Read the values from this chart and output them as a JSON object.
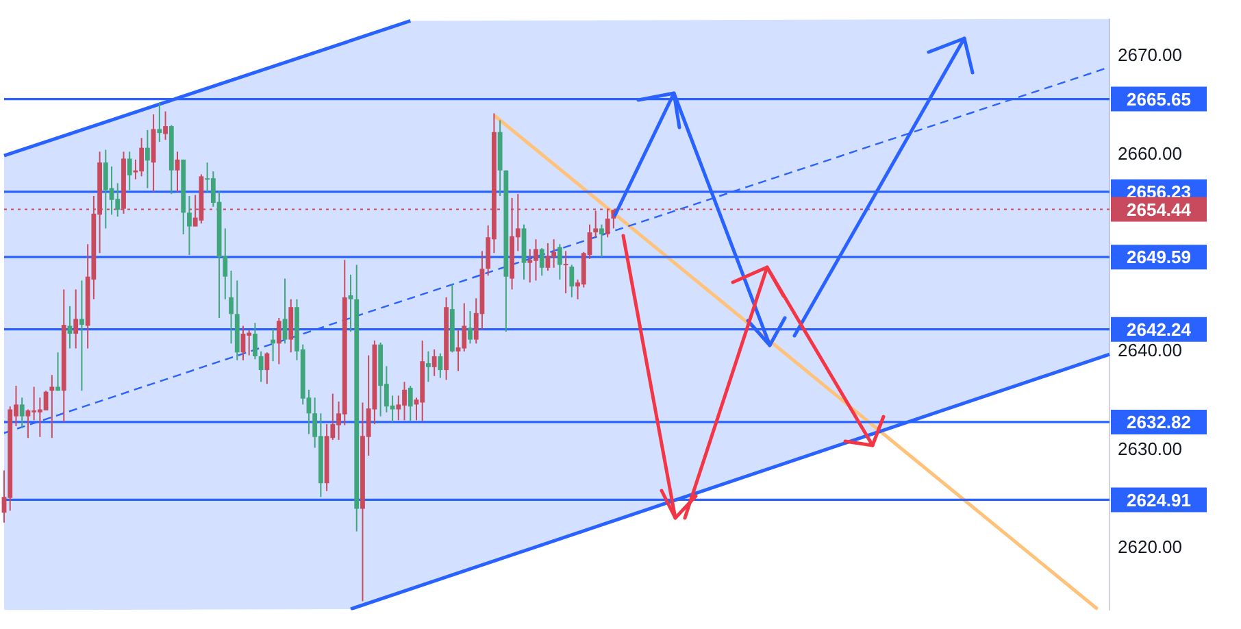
{
  "chart_data": {
    "type": "candlestick",
    "categories": [
      null,
      null,
      null,
      null,
      null,
      null,
      null,
      null,
      null,
      null,
      null,
      null,
      null,
      null,
      null,
      null,
      null,
      null,
      null,
      null,
      null,
      null,
      null,
      null,
      null,
      null,
      null,
      null,
      null,
      null,
      null,
      null,
      null,
      null,
      null,
      null,
      null,
      null,
      null,
      null,
      null,
      null,
      null,
      null,
      null,
      null,
      null,
      null,
      null,
      null,
      null,
      null,
      null,
      null,
      null,
      null,
      null,
      null,
      null,
      null,
      null,
      null,
      null,
      null,
      null,
      null,
      null,
      null,
      null,
      null,
      null,
      null,
      null,
      null,
      null,
      null,
      null,
      null,
      null,
      null,
      null,
      null,
      null,
      null,
      null,
      null,
      null,
      null,
      null,
      null,
      null,
      null,
      null,
      null,
      null,
      null,
      null,
      null,
      null,
      null,
      null,
      null,
      null,
      null,
      null,
      null,
      null,
      null,
      null,
      null,
      null,
      null,
      null,
      null,
      null,
      null,
      null,
      null,
      null,
      null,
      null,
      null,
      null,
      null,
      null,
      null,
      null,
      null,
      null,
      null,
      null,
      null,
      null,
      null,
      null,
      null,
      null,
      null,
      null,
      null,
      null,
      null,
      null,
      null,
      null,
      null,
      null,
      null,
      null,
      null,
      null,
      null,
      null,
      null,
      null,
      null,
      null,
      null,
      null,
      null,
      null,
      null,
      null,
      null,
      null,
      null,
      null,
      null,
      null,
      null,
      null,
      null,
      null,
      null,
      null,
      null,
      null,
      null,
      null,
      null,
      null,
      null,
      null,
      null,
      null,
      null
    ],
    "ohlc": [
      [
        2623.6,
        2627.9,
        2622.6,
        2625.2
      ],
      [
        2625.1,
        2634.4,
        2623.8,
        2634.1
      ],
      [
        2633.4,
        2636.5,
        2632.4,
        2634.6
      ],
      [
        2634.6,
        2635.3,
        2632.2,
        2633.4
      ],
      [
        2633.4,
        2634.1,
        2631.2,
        2634.0
      ],
      [
        2633.8,
        2636.4,
        2633.0,
        2634.0
      ],
      [
        2633.8,
        2635.3,
        2631.3,
        2634.1
      ],
      [
        2634.0,
        2636.0,
        2634.0,
        2635.9
      ],
      [
        2636.0,
        2637.6,
        2631.2,
        2636.4
      ],
      [
        2636.4,
        2639.9,
        2636.0,
        2636.0
      ],
      [
        2636.0,
        2646.3,
        2632.8,
        2642.7
      ],
      [
        2642.6,
        2644.6,
        2640.3,
        2641.8
      ],
      [
        2641.8,
        2646.3,
        2640.3,
        2643.3
      ],
      [
        2643.3,
        2647.2,
        2636.0,
        2642.7
      ],
      [
        2642.6,
        2650.9,
        2640.3,
        2647.6
      ],
      [
        2647.3,
        2655.8,
        2645.3,
        2654.0
      ],
      [
        2653.9,
        2660.3,
        2650.0,
        2659.2
      ],
      [
        2659.2,
        2660.5,
        2652.5,
        2656.4
      ],
      [
        2656.6,
        2658.8,
        2653.9,
        2655.4
      ],
      [
        2655.5,
        2657.1,
        2653.7,
        2654.4
      ],
      [
        2654.5,
        2660.3,
        2654.0,
        2659.6
      ],
      [
        2659.6,
        2660.3,
        2656.4,
        2657.9
      ],
      [
        2658.2,
        2659.5,
        2657.5,
        2658.4
      ],
      [
        2658.3,
        2661.7,
        2657.8,
        2660.7
      ],
      [
        2660.7,
        2662.5,
        2656.6,
        2659.4
      ],
      [
        2659.2,
        2664.1,
        2656.2,
        2662.6
      ],
      [
        2662.6,
        2665.3,
        2661.3,
        2662.2
      ],
      [
        2662.1,
        2664.4,
        2661.5,
        2662.9
      ],
      [
        2662.9,
        2663.0,
        2656.0,
        2658.4
      ],
      [
        2658.4,
        2660.3,
        2656.2,
        2659.5
      ],
      [
        2659.5,
        2659.5,
        2651.9,
        2654.1
      ],
      [
        2654.1,
        2655.8,
        2649.8,
        2652.7
      ],
      [
        2652.7,
        2655.9,
        2652.7,
        2653.6
      ],
      [
        2653.3,
        2658.0,
        2653.0,
        2657.8
      ],
      [
        2657.6,
        2659.2,
        2656.2,
        2657.5
      ],
      [
        2657.6,
        2658.3,
        2654.7,
        2655.1
      ],
      [
        2655.2,
        2656.3,
        2643.4,
        2649.6
      ],
      [
        2649.7,
        2652.5,
        2645.3,
        2647.6
      ],
      [
        2645.5,
        2648.2,
        2640.8,
        2643.8
      ],
      [
        2643.8,
        2647.2,
        2639.1,
        2639.9
      ],
      [
        2639.9,
        2642.6,
        2639.1,
        2641.8
      ],
      [
        2641.6,
        2642.2,
        2639.6,
        2641.9
      ],
      [
        2641.8,
        2642.9,
        2639.2,
        2639.5
      ],
      [
        2639.5,
        2640.0,
        2636.9,
        2638.1
      ],
      [
        2638.1,
        2639.9,
        2636.7,
        2639.8
      ],
      [
        2641.2,
        2642.3,
        2639.0,
        2640.8
      ],
      [
        2640.8,
        2643.4,
        2638.7,
        2643.1
      ],
      [
        2643.3,
        2647.4,
        2640.8,
        2641.2
      ],
      [
        2641.2,
        2645.3,
        2639.9,
        2644.5
      ],
      [
        2644.5,
        2645.3,
        2639.1,
        2640.0
      ],
      [
        2640.2,
        2640.7,
        2634.6,
        2635.2
      ],
      [
        2635.3,
        2636.1,
        2631.6,
        2633.7
      ],
      [
        2633.7,
        2635.3,
        2630.2,
        2631.3
      ],
      [
        2631.4,
        2633.7,
        2625.2,
        2626.6
      ],
      [
        2626.6,
        2632.6,
        2625.8,
        2631.4
      ],
      [
        2631.2,
        2635.7,
        2631.0,
        2632.6
      ],
      [
        2632.5,
        2634.9,
        2631.0,
        2633.7
      ],
      [
        2633.6,
        2649.3,
        2632.5,
        2645.5
      ],
      [
        2645.7,
        2647.8,
        2642.0,
        2645.3
      ],
      [
        2645.3,
        2648.8,
        2621.7,
        2624.0
      ],
      [
        2624.0,
        2634.8,
        2614.6,
        2631.4
      ],
      [
        2631.3,
        2639.6,
        2629.4,
        2634.2
      ],
      [
        2634.1,
        2641.1,
        2632.6,
        2640.7
      ],
      [
        2640.7,
        2640.9,
        2633.4,
        2636.5
      ],
      [
        2636.7,
        2638.5,
        2633.8,
        2634.4
      ],
      [
        2634.5,
        2635.5,
        2632.8,
        2634.1
      ],
      [
        2634.1,
        2635.5,
        2633.0,
        2634.6
      ],
      [
        2634.5,
        2636.9,
        2633.0,
        2636.1
      ],
      [
        2636.3,
        2636.5,
        2632.9,
        2634.4
      ],
      [
        2634.6,
        2635.3,
        2633.0,
        2635.1
      ],
      [
        2634.8,
        2641.1,
        2632.9,
        2639.0
      ],
      [
        2638.8,
        2640.0,
        2636.9,
        2638.4
      ],
      [
        2638.4,
        2640.2,
        2637.5,
        2639.5
      ],
      [
        2639.5,
        2639.8,
        2637.3,
        2638.1
      ],
      [
        2638.1,
        2645.5,
        2637.1,
        2644.5
      ],
      [
        2644.3,
        2646.8,
        2639.9,
        2640.0
      ],
      [
        2640.0,
        2642.2,
        2638.0,
        2640.4
      ],
      [
        2640.3,
        2644.9,
        2640.0,
        2642.6
      ],
      [
        2642.4,
        2644.1,
        2640.8,
        2641.2
      ],
      [
        2641.2,
        2645.4,
        2640.8,
        2643.9
      ],
      [
        2643.8,
        2650.2,
        2642.2,
        2648.4
      ],
      [
        2648.4,
        2652.8,
        2647.7,
        2651.6
      ],
      [
        2651.4,
        2664.2,
        2650.0,
        2662.3
      ],
      [
        2662.3,
        2663.5,
        2655.8,
        2658.4
      ],
      [
        2658.4,
        2658.4,
        2642.0,
        2647.6
      ],
      [
        2647.4,
        2655.6,
        2646.3,
        2651.7
      ],
      [
        2651.6,
        2656.0,
        2650.2,
        2652.5
      ],
      [
        2652.5,
        2652.9,
        2647.3,
        2649.0
      ],
      [
        2649.0,
        2650.4,
        2647.0,
        2649.3
      ],
      [
        2649.2,
        2651.4,
        2647.2,
        2650.4
      ],
      [
        2650.4,
        2650.5,
        2647.7,
        2648.5
      ],
      [
        2648.5,
        2651.0,
        2648.2,
        2649.7
      ],
      [
        2649.6,
        2651.4,
        2648.5,
        2650.1
      ],
      [
        2650.6,
        2650.9,
        2647.3,
        2648.8
      ],
      [
        2648.8,
        2650.2,
        2645.9,
        2648.9
      ],
      [
        2648.6,
        2648.8,
        2645.5,
        2646.6
      ],
      [
        2646.6,
        2647.3,
        2645.3,
        2647.0
      ],
      [
        2646.8,
        2650.1,
        2646.5,
        2650.0
      ],
      [
        2649.8,
        2652.9,
        2649.4,
        2652.1
      ],
      [
        2652.1,
        2654.3,
        2651.6,
        2652.5
      ],
      [
        2652.5,
        2652.9,
        2649.6,
        2651.9
      ],
      [
        2651.9,
        2654.4,
        2651.6,
        2653.5
      ],
      [
        2653.5,
        2654.4,
        2652.5,
        2654.4
      ],
      null,
      null,
      null,
      null,
      null,
      null,
      null,
      null,
      null,
      null,
      null,
      null,
      null,
      null,
      null,
      null,
      null,
      null,
      null,
      null,
      null,
      null,
      null,
      null,
      null,
      null,
      null,
      null,
      null,
      null,
      null,
      null,
      null,
      null,
      null,
      null,
      null,
      null,
      null,
      null,
      null,
      null,
      null,
      null,
      null,
      null,
      null,
      null,
      null,
      null,
      null,
      null,
      null,
      null,
      null,
      null,
      null,
      null,
      null,
      null,
      null,
      null,
      null,
      null,
      null,
      null,
      null,
      null,
      null,
      null,
      null,
      null,
      null,
      null,
      null,
      null,
      null,
      null,
      null,
      null,
      null,
      null,
      null
    ],
    "colors": [
      "#c84a5c",
      "#c84a5c",
      "#c84a5c",
      "#3fa57a",
      "#c84a5c",
      "#c84a5c",
      "#c84a5c",
      "#c84a5c",
      "#c84a5c",
      "#3fa57a",
      "#c84a5c",
      "#3fa57a",
      "#c84a5c",
      "#3fa57a",
      "#c84a5c",
      "#c84a5c",
      "#c84a5c",
      "#3fa57a",
      "#3fa57a",
      "#3fa57a",
      "#c84a5c",
      "#3fa57a",
      "#c84a5c",
      "#c84a5c",
      "#3fa57a",
      "#c84a5c",
      "#3fa57a",
      "#c84a5c",
      "#3fa57a",
      "#c84a5c",
      "#3fa57a",
      "#3fa57a",
      "#c84a5c",
      "#c84a5c",
      "#3fa57a",
      "#3fa57a",
      "#3fa57a",
      "#3fa57a",
      "#3fa57a",
      "#3fa57a",
      "#c84a5c",
      "#c84a5c",
      "#3fa57a",
      "#3fa57a",
      "#c84a5c",
      "#3fa57a",
      "#c84a5c",
      "#3fa57a",
      "#c84a5c",
      "#3fa57a",
      "#3fa57a",
      "#3fa57a",
      "#3fa57a",
      "#3fa57a",
      "#c84a5c",
      "#c84a5c",
      "#c84a5c",
      "#c84a5c",
      "#3fa57a",
      "#3fa57a",
      "#c84a5c",
      "#c84a5c",
      "#c84a5c",
      "#3fa57a",
      "#3fa57a",
      "#3fa57a",
      "#c84a5c",
      "#c84a5c",
      "#3fa57a",
      "#c84a5c",
      "#c84a5c",
      "#3fa57a",
      "#c84a5c",
      "#3fa57a",
      "#c84a5c",
      "#3fa57a",
      "#c84a5c",
      "#c84a5c",
      "#3fa57a",
      "#c84a5c",
      "#c84a5c",
      "#c84a5c",
      "#c84a5c",
      "#3fa57a",
      "#3fa57a",
      "#c84a5c",
      "#c84a5c",
      "#3fa57a",
      "#c84a5c",
      "#c84a5c",
      "#3fa57a",
      "#c84a5c",
      "#c84a5c",
      "#3fa57a",
      "#c84a5c",
      "#3fa57a",
      "#c84a5c",
      "#c84a5c",
      "#c84a5c",
      "#c84a5c",
      "#3fa57a",
      "#c84a5c",
      "#c84a5c",
      null,
      null,
      null,
      null,
      null,
      null,
      null,
      null,
      null,
      null,
      null,
      null,
      null,
      null,
      null,
      null,
      null,
      null,
      null,
      null,
      null,
      null,
      null,
      null,
      null,
      null,
      null,
      null,
      null,
      null,
      null,
      null,
      null,
      null,
      null,
      null,
      null,
      null,
      null,
      null,
      null,
      null,
      null,
      null,
      null,
      null,
      null,
      null,
      null,
      null,
      null,
      null,
      null,
      null,
      null,
      null,
      null,
      null,
      null,
      null,
      null,
      null,
      null,
      null,
      null,
      null,
      null,
      null,
      null,
      null,
      null,
      null,
      null,
      null,
      null,
      null,
      null,
      null,
      null,
      null,
      null,
      null,
      null
    ],
    "series": [
      {
        "type": "line",
        "color": "#2962ff",
        "line_style": "solid",
        "values": [
          2659.9,
          null,
          null,
          null,
          null,
          null,
          null,
          null,
          null,
          null,
          null,
          null,
          null,
          null,
          null,
          null,
          null,
          null,
          null,
          null,
          null,
          null,
          null,
          null,
          null,
          null,
          null,
          null,
          null,
          null,
          null,
          null,
          null,
          null,
          null,
          null,
          null,
          null,
          null,
          null,
          null,
          null,
          null,
          null,
          null,
          null,
          null,
          null,
          null,
          null,
          null,
          null,
          null,
          null,
          null,
          null,
          null,
          null,
          null,
          null,
          null,
          null,
          null,
          null,
          null,
          null,
          null,
          null,
          2673.6,
          null,
          null,
          null,
          null,
          null,
          null,
          null,
          null,
          null,
          null,
          null,
          null,
          null,
          null,
          null,
          null,
          null,
          null,
          null,
          null,
          null,
          null,
          null,
          null,
          null,
          null,
          null,
          null,
          null,
          null,
          null,
          null,
          null,
          null,
          null,
          null,
          null,
          null,
          null,
          null,
          null,
          null,
          null,
          null,
          null,
          null,
          null,
          null,
          null,
          null,
          null,
          null,
          null,
          null,
          null,
          null,
          null,
          null,
          null,
          null,
          null,
          null,
          null,
          null,
          null,
          null,
          null,
          null,
          null,
          null,
          null,
          null,
          null,
          null,
          null,
          null,
          null,
          null,
          null,
          null,
          null,
          null,
          null,
          null,
          null,
          null,
          null,
          null,
          null,
          null,
          null,
          null,
          null,
          null,
          null,
          null,
          null,
          null,
          null,
          null,
          null,
          null,
          null,
          null,
          null,
          null,
          null,
          null,
          null,
          null,
          null,
          null,
          null,
          null,
          null,
          null,
          null
        ]
      },
      {
        "type": "line",
        "color": "#2962ff",
        "line_style": "solid",
        "values": [
          null,
          null,
          null,
          null,
          null,
          null,
          null,
          null,
          null,
          null,
          null,
          null,
          null,
          null,
          null,
          null,
          null,
          null,
          null,
          null,
          null,
          null,
          null,
          null,
          null,
          null,
          null,
          null,
          null,
          null,
          null,
          null,
          null,
          null,
          null,
          null,
          null,
          null,
          null,
          null,
          null,
          null,
          null,
          null,
          null,
          null,
          null,
          null,
          null,
          null,
          null,
          null,
          null,
          null,
          null,
          null,
          null,
          null,
          2613.8,
          null,
          null,
          null,
          null,
          null,
          null,
          null,
          null,
          null,
          null,
          null,
          null,
          null,
          null,
          null,
          null,
          null,
          null,
          null,
          null,
          null,
          null,
          null,
          null,
          null,
          null,
          null,
          null,
          null,
          null,
          null,
          null,
          null,
          null,
          null,
          null,
          null,
          null,
          null,
          null,
          null,
          null,
          null,
          null,
          null,
          null,
          null,
          null,
          null,
          null,
          null,
          null,
          null,
          null,
          null,
          null,
          null,
          null,
          null,
          null,
          null,
          null,
          null,
          null,
          null,
          null,
          null,
          null,
          null,
          null,
          null,
          null,
          null,
          null,
          null,
          null,
          null,
          null,
          null,
          null,
          null,
          null,
          null,
          null,
          null,
          null,
          null,
          null,
          null,
          null,
          null,
          null,
          null,
          null,
          null,
          null,
          null,
          null,
          null,
          null,
          null,
          null,
          null,
          null,
          null,
          null,
          null,
          null,
          null,
          null,
          null,
          null,
          null,
          null,
          null,
          null,
          null,
          null,
          null,
          null,
          null,
          null,
          null,
          null,
          null,
          null,
          2639.7
        ]
      },
      {
        "type": "line",
        "color": "#2962ff",
        "line_style": "dashed",
        "values": [
          2631.7,
          null,
          null,
          null,
          null,
          null,
          null,
          null,
          null,
          null,
          null,
          null,
          null,
          null,
          null,
          null,
          null,
          null,
          null,
          null,
          null,
          null,
          null,
          null,
          null,
          null,
          null,
          null,
          null,
          null,
          null,
          null,
          null,
          null,
          null,
          null,
          null,
          null,
          null,
          null,
          null,
          null,
          null,
          null,
          null,
          null,
          null,
          null,
          null,
          null,
          null,
          null,
          null,
          null,
          null,
          null,
          null,
          null,
          2643.4,
          null,
          null,
          null,
          null,
          null,
          null,
          null,
          null,
          null,
          2645.4,
          null,
          null,
          null,
          null,
          null,
          null,
          null,
          null,
          null,
          null,
          null,
          null,
          null,
          null,
          null,
          null,
          null,
          null,
          null,
          null,
          null,
          null,
          null,
          null,
          null,
          null,
          null,
          null,
          null,
          null,
          null,
          null,
          null,
          null,
          null,
          null,
          null,
          null,
          null,
          null,
          null,
          null,
          null,
          null,
          null,
          null,
          null,
          null,
          null,
          null,
          null,
          null,
          null,
          null,
          null,
          null,
          null,
          null,
          null,
          null,
          null,
          null,
          null,
          null,
          null,
          null,
          null,
          null,
          null,
          null,
          null,
          null,
          null,
          null,
          null,
          null,
          null,
          null,
          null,
          null,
          null,
          null,
          null,
          null,
          null,
          null,
          null,
          null,
          null,
          null,
          null,
          null,
          null,
          null,
          null,
          null,
          null,
          null,
          null,
          null,
          null,
          null,
          null,
          null,
          null,
          null,
          null,
          null,
          null,
          null,
          null,
          null,
          null,
          null,
          null,
          null,
          2668.9
        ],
        "lower": [
          2613.7,
          null,
          null,
          null,
          null,
          null,
          null,
          null,
          null,
          null,
          null,
          null,
          null,
          null,
          null,
          null,
          null,
          null,
          null,
          null,
          null,
          null,
          null,
          null,
          null,
          null,
          null,
          null,
          null,
          null,
          null,
          null,
          null,
          null,
          null,
          null,
          null,
          null,
          null,
          null,
          null,
          null,
          null,
          null,
          null,
          null,
          null,
          null,
          null,
          null,
          null,
          null,
          null,
          null,
          null,
          null,
          null,
          null,
          2613.8,
          null,
          null,
          null,
          null,
          null,
          null,
          null,
          null,
          null,
          2615.8,
          null,
          null,
          null,
          null,
          null,
          null,
          null,
          null,
          null,
          null,
          null,
          null,
          null,
          null,
          null,
          null,
          null,
          null,
          null,
          null,
          null,
          null,
          null,
          null,
          null,
          null,
          null,
          null,
          null,
          null,
          null,
          null,
          null,
          null,
          null,
          null,
          null,
          null,
          null,
          null,
          null,
          null,
          null,
          null,
          null,
          null,
          null,
          null,
          null,
          null,
          null,
          null,
          null,
          null,
          null,
          null,
          null,
          null,
          null,
          null,
          null,
          null,
          null,
          null,
          null,
          null,
          null,
          null,
          null,
          null,
          null,
          null,
          null,
          null,
          null,
          null,
          null,
          null,
          null,
          null,
          null,
          null,
          null,
          null,
          null,
          null,
          null,
          null,
          null,
          null,
          null,
          null,
          null,
          null,
          null,
          null,
          null,
          null,
          null,
          null,
          null,
          null,
          null,
          null,
          null,
          null,
          null,
          null,
          null,
          null,
          null,
          null,
          null,
          null,
          null,
          null,
          2639.7
        ],
        "upper": [
          2659.9,
          null,
          null,
          null,
          null,
          null,
          null,
          null,
          null,
          null,
          null,
          null,
          null,
          null,
          null,
          null,
          null,
          null,
          null,
          null,
          null,
          null,
          null,
          null,
          null,
          null,
          null,
          null,
          null,
          null,
          null,
          null,
          null,
          null,
          null,
          null,
          null,
          null,
          null,
          null,
          null,
          null,
          null,
          null,
          null,
          null,
          null,
          null,
          null,
          null,
          null,
          null,
          null,
          null,
          null,
          null,
          null,
          null,
          2671.6,
          null,
          null,
          null,
          null,
          null,
          null,
          null,
          null,
          null,
          2673.6,
          null,
          null,
          null,
          null,
          null,
          null,
          null,
          null,
          null,
          null,
          null,
          null,
          null,
          null,
          null,
          null,
          null,
          null,
          null,
          null,
          null,
          null,
          null,
          null,
          null,
          null,
          null,
          null,
          null,
          null,
          null,
          null,
          null,
          null,
          null,
          null,
          null,
          null,
          null,
          null,
          null,
          null,
          null,
          null,
          null,
          null,
          null,
          null,
          null,
          null,
          null,
          null,
          null,
          null,
          null,
          null,
          null,
          null,
          null,
          null,
          null,
          null,
          null,
          null,
          null,
          null,
          null,
          null,
          null,
          null,
          null,
          null,
          null,
          null,
          null,
          null,
          null,
          null,
          null,
          null,
          null,
          null,
          null,
          null,
          null,
          null,
          null,
          null,
          null,
          null,
          null,
          null,
          null,
          null,
          null,
          null,
          null,
          null,
          null,
          null,
          null,
          null,
          null,
          null,
          null,
          null,
          null,
          null,
          null,
          null,
          null,
          null,
          null,
          null,
          null,
          null,
          2673.8
        ]
      },
      {
        "type": "line",
        "color": "#ffc27a",
        "line_style": "solid",
        "values": [
          null,
          null,
          null,
          null,
          null,
          null,
          null,
          null,
          null,
          null,
          null,
          null,
          null,
          null,
          null,
          null,
          null,
          null,
          null,
          null,
          null,
          null,
          null,
          null,
          null,
          null,
          null,
          null,
          null,
          null,
          null,
          null,
          null,
          null,
          null,
          null,
          null,
          null,
          null,
          null,
          null,
          null,
          null,
          null,
          null,
          null,
          null,
          null,
          null,
          null,
          null,
          null,
          null,
          null,
          null,
          null,
          null,
          null,
          null,
          null,
          null,
          null,
          null,
          null,
          null,
          null,
          null,
          null,
          null,
          null,
          null,
          null,
          null,
          null,
          null,
          null,
          null,
          null,
          null,
          null,
          null,
          null,
          2664.0,
          null,
          null,
          null,
          null,
          null,
          null,
          null,
          null,
          null,
          null,
          null,
          null,
          null,
          null,
          null,
          null,
          null,
          null,
          null,
          null,
          null,
          null,
          null,
          null,
          null,
          null,
          null,
          null,
          null,
          null,
          null,
          null,
          null,
          null,
          null,
          null,
          null,
          null,
          null,
          null,
          null,
          null,
          null,
          null,
          null,
          null,
          null,
          null,
          null,
          null,
          null,
          null,
          null,
          null,
          null,
          null,
          null,
          null,
          null,
          null,
          null,
          null,
          null,
          null,
          null,
          null,
          null,
          null,
          null,
          null,
          null,
          null,
          null,
          null,
          null,
          null,
          null,
          null,
          null,
          null,
          null,
          null,
          null,
          null,
          null,
          null,
          null,
          null,
          null,
          null,
          null,
          null,
          null,
          null,
          null,
          null,
          null,
          null,
          null,
          null,
          2613.8,
          null,
          null
        ]
      }
    ],
    "ylim": [
      2613.7,
      2673.8
    ],
    "yticks": [
      {
        "value": 2620,
        "label": "2620.00"
      },
      {
        "value": 2630,
        "label": "2630.00"
      },
      {
        "value": 2640,
        "label": "2640.00"
      },
      {
        "value": 2660,
        "label": "2660.00"
      },
      {
        "value": 2670,
        "label": "2670.00"
      }
    ],
    "tick_labels": "y",
    "ref_lines": [
      {
        "axis": "y",
        "value": 2665.65,
        "label": "2665.65",
        "color": "#2962ff"
      },
      {
        "axis": "y",
        "value": 2656.23,
        "label": "2656.23",
        "color": "#2962ff"
      },
      {
        "axis": "y",
        "value": 2654.44,
        "label": "2654.44",
        "color": "#c84a5c",
        "line_style": "dotted"
      },
      {
        "axis": "y",
        "value": 2649.59,
        "label": "2649.59",
        "color": "#2962ff"
      },
      {
        "axis": "y",
        "value": 2642.24,
        "label": "2642.24",
        "color": "#2962ff"
      },
      {
        "axis": "y",
        "value": 2632.82,
        "label": "2632.82",
        "color": "#2962ff"
      },
      {
        "axis": "y",
        "value": 2624.91,
        "label": "2624.91",
        "color": "#2962ff"
      }
    ]
  }
}
